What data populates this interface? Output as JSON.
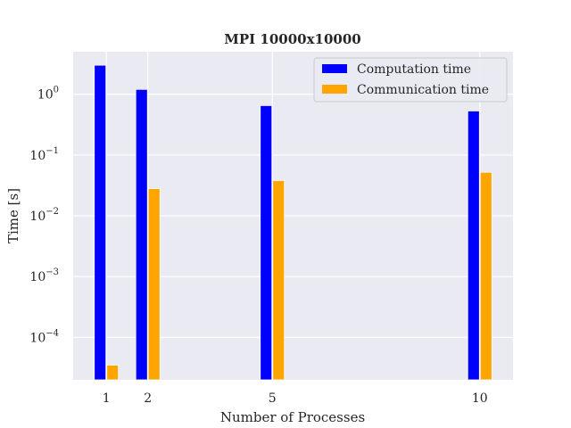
{
  "chart_data": {
    "type": "bar",
    "title": "MPI 10000x10000",
    "xlabel": "Number of Processes",
    "ylabel": "Time [s]",
    "x": [
      1,
      2,
      5,
      10
    ],
    "x_tick_labels": [
      "1",
      "2",
      "5",
      "10"
    ],
    "xlim": [
      0.2,
      10.8
    ],
    "yscale": "log",
    "ylim": [
      2e-05,
      5
    ],
    "y_ticks": [
      {
        "value": 0.0001,
        "base": "10",
        "exp": "−4"
      },
      {
        "value": 0.001,
        "base": "10",
        "exp": "−3"
      },
      {
        "value": 0.01,
        "base": "10",
        "exp": "−2"
      },
      {
        "value": 0.1,
        "base": "10",
        "exp": "−1"
      },
      {
        "value": 1,
        "base": "10",
        "exp": "0"
      }
    ],
    "grid": true,
    "legend_position": "top-right",
    "series": [
      {
        "name": "Computation time",
        "color": "#0000ff",
        "values": [
          3.0,
          1.2,
          0.65,
          0.53
        ]
      },
      {
        "name": "Communication time",
        "color": "#ffa500",
        "values": [
          3.5e-05,
          0.028,
          0.038,
          0.052
        ]
      }
    ]
  }
}
